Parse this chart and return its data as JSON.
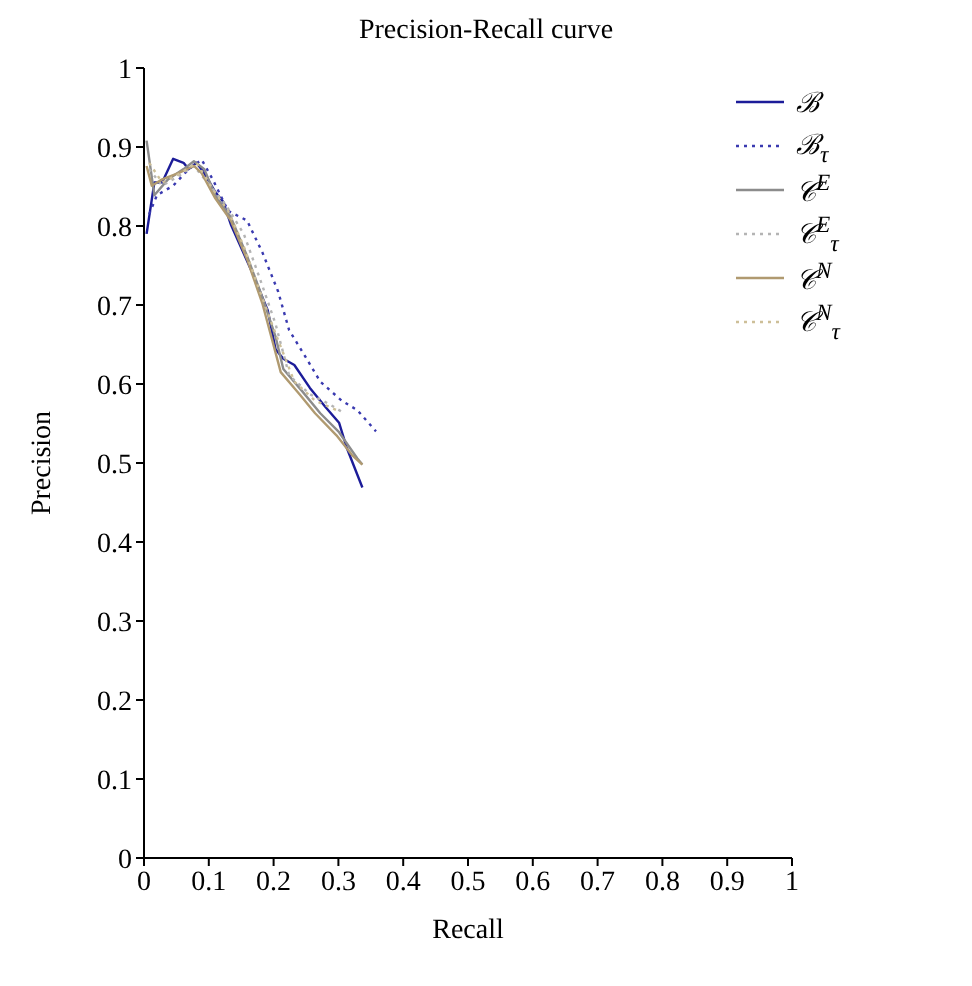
{
  "chart_data": {
    "type": "line",
    "title": "Precision-Recall curve",
    "xlabel": "Recall",
    "ylabel": "Precision",
    "xlim": [
      0,
      1
    ],
    "ylim": [
      0,
      1
    ],
    "xticks": [
      0,
      0.1,
      0.2,
      0.3,
      0.4,
      0.5,
      0.6,
      0.7,
      0.8,
      0.9,
      1
    ],
    "yticks": [
      0,
      0.1,
      0.2,
      0.3,
      0.4,
      0.5,
      0.6,
      0.7,
      0.8,
      0.9,
      1
    ],
    "grid": false,
    "legend": "top right",
    "marker": "none",
    "series": [
      {
        "name": "ℬ",
        "color": "#1c1c99",
        "line_style": "solid",
        "x": [
          0.004,
          0.016,
          0.028,
          0.045,
          0.061,
          0.069,
          0.081,
          0.093,
          0.11,
          0.122,
          0.134,
          0.167,
          0.191,
          0.203,
          0.215,
          0.232,
          0.256,
          0.28,
          0.301,
          0.313,
          0.337
        ],
        "values": [
          0.79,
          0.855,
          0.855,
          0.885,
          0.88,
          0.872,
          0.88,
          0.867,
          0.843,
          0.831,
          0.802,
          0.741,
          0.693,
          0.644,
          0.632,
          0.624,
          0.595,
          0.571,
          0.551,
          0.519,
          0.469
        ]
      },
      {
        "name": "ℬ$_{τ}$",
        "color": "#3a3ab0",
        "line_style": "dotted",
        "x": [
          0.008,
          0.02,
          0.045,
          0.069,
          0.089,
          0.106,
          0.13,
          0.159,
          0.183,
          0.207,
          0.224,
          0.248,
          0.272,
          0.305,
          0.329,
          0.358
        ],
        "values": [
          0.815,
          0.839,
          0.851,
          0.872,
          0.884,
          0.859,
          0.819,
          0.807,
          0.766,
          0.717,
          0.668,
          0.636,
          0.603,
          0.579,
          0.567,
          0.54
        ]
      },
      {
        "name": "𝒞$^{E}$",
        "color": "#8c8c8c",
        "line_style": "solid",
        "x": [
          0.004,
          0.016,
          0.037,
          0.061,
          0.077,
          0.093,
          0.11,
          0.134,
          0.159,
          0.183,
          0.203,
          0.215,
          0.244,
          0.272,
          0.301,
          0.329,
          0.337
        ],
        "values": [
          0.908,
          0.839,
          0.859,
          0.872,
          0.882,
          0.872,
          0.839,
          0.811,
          0.762,
          0.709,
          0.66,
          0.619,
          0.591,
          0.563,
          0.539,
          0.506,
          0.498
        ]
      },
      {
        "name": "𝒞$^{E}$$_{τ}$",
        "color": "#b4b4b4",
        "line_style": "dotted",
        "x": [
          0.008,
          0.028,
          0.053,
          0.077,
          0.102,
          0.126,
          0.154,
          0.179,
          0.203,
          0.224,
          0.256,
          0.285,
          0.309
        ],
        "values": [
          0.872,
          0.851,
          0.863,
          0.876,
          0.851,
          0.827,
          0.79,
          0.733,
          0.676,
          0.611,
          0.587,
          0.575,
          0.563
        ]
      },
      {
        "name": "𝒞$^{N}$",
        "color": "#b09a70",
        "line_style": "solid",
        "x": [
          0.004,
          0.012,
          0.028,
          0.053,
          0.077,
          0.089,
          0.11,
          0.134,
          0.159,
          0.183,
          0.199,
          0.211,
          0.24,
          0.264,
          0.297,
          0.321,
          0.337
        ],
        "values": [
          0.876,
          0.851,
          0.859,
          0.867,
          0.876,
          0.867,
          0.835,
          0.807,
          0.758,
          0.701,
          0.652,
          0.615,
          0.587,
          0.563,
          0.535,
          0.51,
          0.498
        ]
      },
      {
        "name": "𝒞$^{N}$$_{τ}$",
        "color": "#cdbf98",
        "line_style": "dotted",
        "x": [
          0.008,
          0.028,
          0.057,
          0.081,
          0.106,
          0.13,
          0.154,
          0.179,
          0.203,
          0.232,
          0.264,
          0.297
        ],
        "values": [
          0.88,
          0.855,
          0.867,
          0.88,
          0.847,
          0.819,
          0.774,
          0.717,
          0.664,
          0.603,
          0.579,
          0.567
        ]
      }
    ]
  }
}
